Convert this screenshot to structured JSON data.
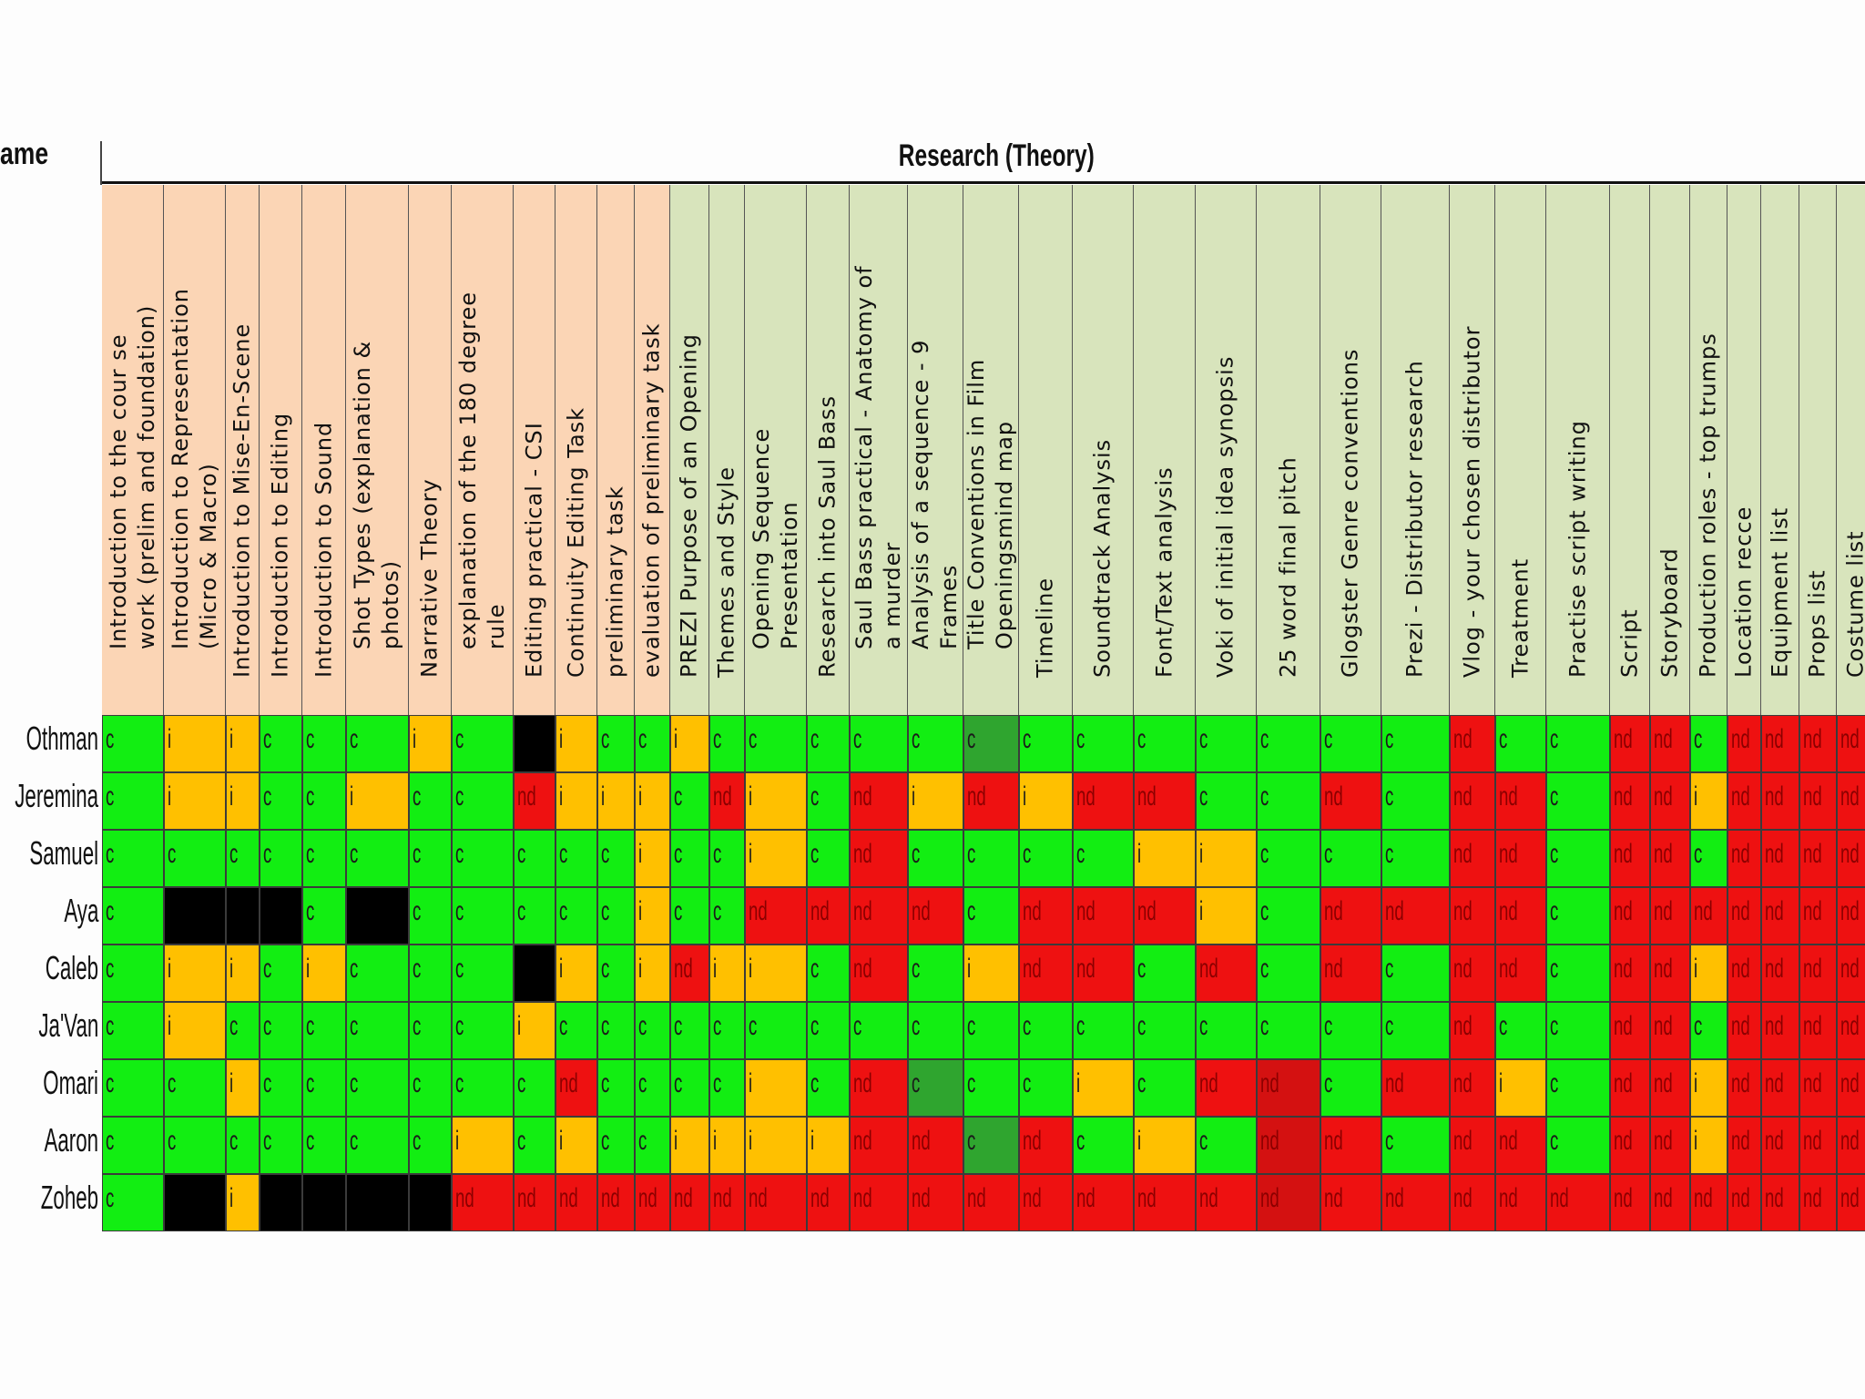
{
  "name_header": "ame",
  "section_header": "Research (Theory)",
  "colors": {
    "c": "#12ee12",
    "i": "#ffc000",
    "nd": "#ee1111",
    "x": "#000000",
    "cd": "#2fa52f",
    "ndd": "#d41111",
    "hdr_orange": "#fbd5b5",
    "hdr_green": "#d8e4bc"
  },
  "columns": [
    {
      "label": "Introduction to the cour se\nwork (prelim and foundation)",
      "bg": "orange"
    },
    {
      "label": "Introduction to Representation\n(Micro & Macro)",
      "bg": "orange"
    },
    {
      "label": "Introduction to Mise-En-Scene",
      "bg": "orange"
    },
    {
      "label": "Introduction to Editing",
      "bg": "orange"
    },
    {
      "label": "Introduction to Sound",
      "bg": "orange"
    },
    {
      "label": "Shot Types (explanation &\nphotos)",
      "bg": "orange"
    },
    {
      "label": "Narrative Theory",
      "bg": "orange"
    },
    {
      "label": "explanation of the 180 degree\nrule",
      "bg": "orange"
    },
    {
      "label": "Editing practical - CSI",
      "bg": "orange"
    },
    {
      "label": "Continuity Editing Task",
      "bg": "orange"
    },
    {
      "label": "preliminary task",
      "bg": "orange"
    },
    {
      "label": "evaluation of preliminary task",
      "bg": "orange"
    },
    {
      "label": "PREZI Purpose of an Opening",
      "bg": "green"
    },
    {
      "label": "Themes and Style",
      "bg": "green"
    },
    {
      "label": "Opening Sequence\nPresentation",
      "bg": "green"
    },
    {
      "label": "Research into Saul Bass",
      "bg": "green"
    },
    {
      "label": "Saul Bass practical - Anatomy of\na murder",
      "bg": "green"
    },
    {
      "label": "Analysis of a sequence - 9\nFrames",
      "bg": "green"
    },
    {
      "label": "Title Conventions in Film\nOpeningsmind map",
      "bg": "green"
    },
    {
      "label": "Timeline",
      "bg": "green"
    },
    {
      "label": "Soundtrack Analysis",
      "bg": "green"
    },
    {
      "label": "Font/Text analysis",
      "bg": "green"
    },
    {
      "label": "Voki of initial idea synopsis",
      "bg": "green"
    },
    {
      "label": "25 word final pitch",
      "bg": "green"
    },
    {
      "label": "Glogster Genre conventions",
      "bg": "green"
    },
    {
      "label": "Prezi - Distributor research",
      "bg": "green"
    },
    {
      "label": "Vlog - your chosen distributor",
      "bg": "green"
    },
    {
      "label": "Treatment",
      "bg": "green"
    },
    {
      "label": "Practise script writing",
      "bg": "green"
    },
    {
      "label": "Script",
      "bg": "green"
    },
    {
      "label": "Storyboard",
      "bg": "green"
    },
    {
      "label": "Production roles - top trumps",
      "bg": "green"
    },
    {
      "label": "Location recce",
      "bg": "green"
    },
    {
      "label": "Equipment list",
      "bg": "green"
    },
    {
      "label": "Props list",
      "bg": "green"
    },
    {
      "label": "Costume list",
      "bg": "green"
    }
  ],
  "rows": [
    {
      "name": "Othman",
      "cells": [
        "c",
        "i",
        "i",
        "c",
        "c",
        "c",
        "i",
        "c",
        "x",
        "i",
        "c",
        "c",
        "i",
        "c",
        "c",
        "c",
        "c",
        "c",
        "cd:c",
        "c",
        "c",
        "c",
        "c",
        "c",
        "c",
        "c",
        "nd:nd",
        "c",
        "c",
        "nd",
        "nd",
        "c",
        "nd",
        "nd",
        "nd",
        "nd"
      ]
    },
    {
      "name": "Jeremina",
      "cells": [
        "c",
        "i",
        "i",
        "c",
        "c",
        "i",
        "c",
        "c",
        "nd",
        "i",
        "i",
        "i",
        "c",
        "nd",
        "i",
        "c",
        "nd",
        "i",
        "nd",
        "i",
        "nd",
        "nd",
        "c",
        "c",
        "nd",
        "c",
        "nd",
        "nd",
        "c",
        "nd",
        "nd",
        "i",
        "nd",
        "nd",
        "nd",
        "nd"
      ]
    },
    {
      "name": "Samuel",
      "cells": [
        "c",
        "c",
        "c",
        "c",
        "c",
        "c",
        "c",
        "c",
        "c",
        "c",
        "c",
        "i",
        "c",
        "c",
        "i",
        "c",
        "nd",
        "c",
        "c",
        "c",
        "c",
        "i",
        "i",
        "c",
        "c",
        "c",
        "nd",
        "nd",
        "c",
        "nd",
        "nd",
        "c",
        "nd",
        "nd",
        "nd",
        "nd"
      ]
    },
    {
      "name": "Aya",
      "cells": [
        "c",
        "x",
        "x",
        "x",
        "c",
        "x",
        "c",
        "c",
        "c",
        "c",
        "c",
        "i",
        "c",
        "c",
        "nd",
        "nd",
        "nd",
        "nd",
        "c",
        "nd",
        "nd",
        "nd",
        "i",
        "c",
        "nd",
        "nd",
        "nd",
        "nd",
        "c",
        "nd",
        "nd",
        "nd",
        "nd",
        "nd",
        "nd",
        "nd"
      ]
    },
    {
      "name": "Caleb",
      "cells": [
        "c",
        "i",
        "i",
        "c",
        "i",
        "c",
        "c",
        "c",
        "x",
        "i",
        "c",
        "i",
        "nd",
        "i",
        "i",
        "c",
        "nd",
        "c",
        "i",
        "nd",
        "nd",
        "c",
        "nd",
        "c",
        "nd",
        "c",
        "nd",
        "nd",
        "c",
        "nd",
        "nd",
        "i",
        "nd",
        "nd",
        "nd",
        "nd"
      ]
    },
    {
      "name": "Ja'Van",
      "cells": [
        "c",
        "i",
        "c",
        "c",
        "c",
        "c",
        "c",
        "c",
        "i",
        "c",
        "c",
        "c",
        "c",
        "c",
        "c",
        "c",
        "c",
        "c",
        "c",
        "c",
        "c",
        "c",
        "c",
        "c",
        "c",
        "c",
        "nd",
        "c",
        "c",
        "nd",
        "nd",
        "c",
        "nd",
        "nd",
        "nd",
        "nd"
      ]
    },
    {
      "name": "Omari",
      "cells": [
        "c",
        "c",
        "i",
        "c",
        "c",
        "c",
        "c",
        "c",
        "c",
        "nd",
        "c",
        "c",
        "c",
        "c",
        "i",
        "c",
        "nd",
        "cd:c",
        "c",
        "c",
        "i",
        "c",
        "nd",
        "ndd:nd",
        "c",
        "nd",
        "nd",
        "i",
        "c",
        "nd",
        "nd",
        "i",
        "nd",
        "nd",
        "nd",
        "nd"
      ]
    },
    {
      "name": "Aaron",
      "cells": [
        "c",
        "c",
        "c",
        "c",
        "c",
        "c",
        "c",
        "i",
        "c",
        "i",
        "c",
        "c",
        "i",
        "i",
        "i",
        "i",
        "nd",
        "nd",
        "cd:c",
        "nd",
        "c",
        "i",
        "c",
        "ndd:nd",
        "nd",
        "c",
        "nd",
        "nd",
        "c",
        "nd",
        "nd",
        "i",
        "nd",
        "nd",
        "nd",
        "nd"
      ]
    },
    {
      "name": "Zoheb",
      "cells": [
        "c",
        "x",
        "i",
        "x",
        "x",
        "x",
        "x",
        "nd",
        "nd",
        "nd",
        "nd",
        "nd",
        "nd",
        "nd",
        "nd",
        "nd",
        "nd",
        "nd",
        "nd",
        "nd",
        "nd",
        "nd",
        "nd",
        "ndd:nd",
        "nd",
        "nd",
        "nd",
        "nd",
        "nd",
        "nd",
        "nd",
        "nd",
        "nd",
        "nd",
        "nd",
        "nd"
      ]
    }
  ]
}
